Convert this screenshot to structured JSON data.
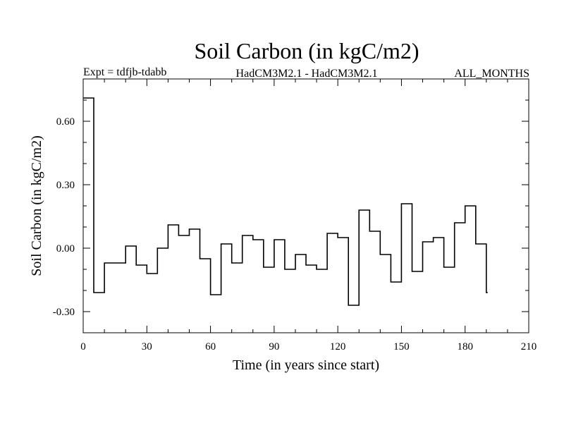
{
  "chart_data": {
    "type": "line",
    "step": true,
    "title": "Soil Carbon (in kgC/m2)",
    "header_left": "Expt = tdfjb-tdabb",
    "header_center": "HadCM3M2.1 - HadCM3M2.1",
    "header_right": "ALL_MONTHS",
    "xlabel": "Time (in years since start)",
    "ylabel": "Soil Carbon (in kgC/m2)",
    "xlim": [
      0,
      210
    ],
    "ylim": [
      -0.4,
      0.8
    ],
    "xticks": [
      0,
      30,
      60,
      90,
      120,
      150,
      180,
      210
    ],
    "xtick_labels": [
      "0",
      "30",
      "60",
      "90",
      "120",
      "150",
      "180",
      "210"
    ],
    "yticks": [
      -0.3,
      0.0,
      0.3,
      0.6
    ],
    "ytick_labels": [
      "-0.30",
      "0.00",
      "0.30",
      "0.60"
    ],
    "series": [
      {
        "name": "Soil Carbon",
        "x": [
          0,
          5,
          10,
          15,
          20,
          25,
          30,
          35,
          40,
          45,
          50,
          55,
          60,
          65,
          70,
          75,
          80,
          85,
          90,
          95,
          100,
          105,
          110,
          115,
          120,
          125,
          130,
          135,
          140,
          145,
          150,
          155,
          160,
          165,
          170,
          175,
          180,
          185,
          190
        ],
        "values": [
          0.71,
          -0.21,
          -0.07,
          -0.07,
          0.01,
          -0.08,
          -0.12,
          0.0,
          0.11,
          0.06,
          0.09,
          -0.05,
          -0.22,
          0.02,
          -0.07,
          0.06,
          0.04,
          -0.09,
          0.04,
          -0.1,
          -0.03,
          -0.08,
          -0.1,
          0.07,
          0.05,
          -0.27,
          0.18,
          0.08,
          -0.03,
          -0.16,
          0.21,
          -0.11,
          0.03,
          0.05,
          -0.09,
          0.12,
          0.2,
          0.02,
          -0.21
        ]
      }
    ]
  }
}
